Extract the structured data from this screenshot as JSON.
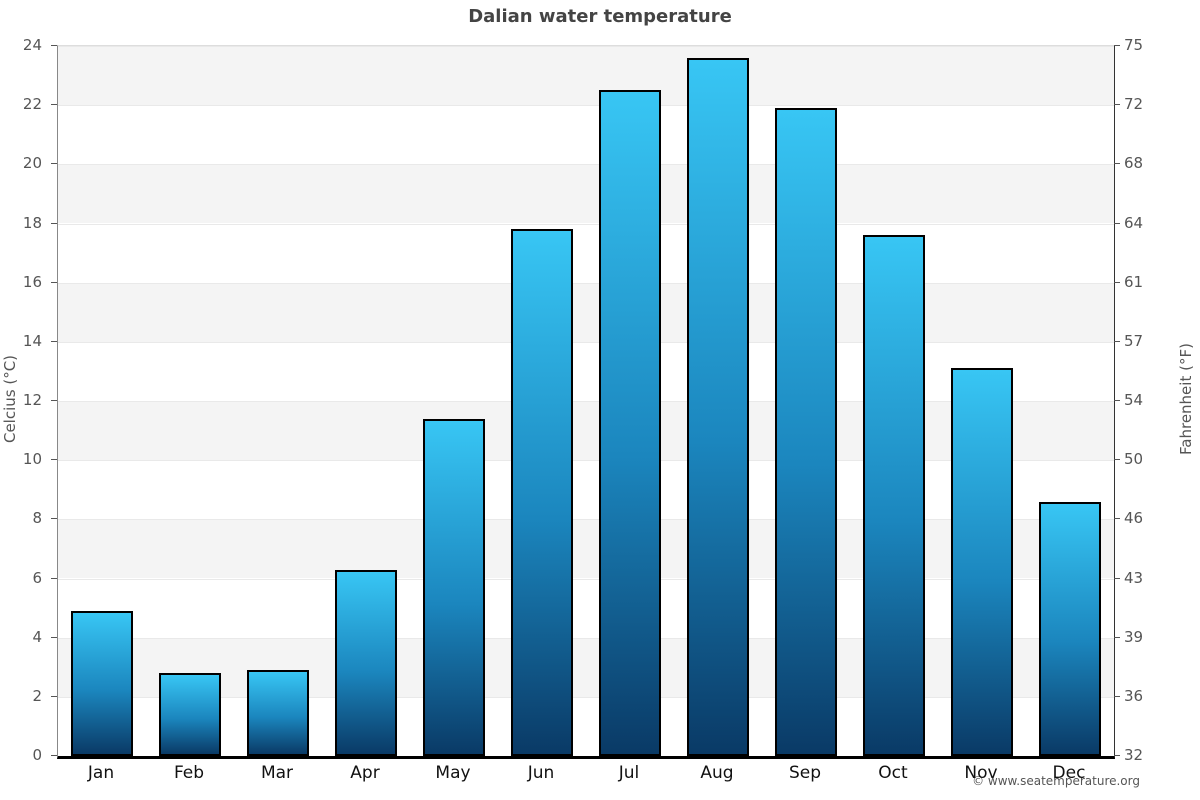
{
  "title": "Dalian water temperature",
  "footer": "© www.seatemperature.org",
  "chart_data": {
    "type": "bar",
    "title": "Dalian water temperature",
    "categories": [
      "Jan",
      "Feb",
      "Mar",
      "Apr",
      "May",
      "Jun",
      "Jul",
      "Aug",
      "Sep",
      "Oct",
      "Nov",
      "Dec"
    ],
    "values": [
      4.9,
      2.8,
      2.9,
      6.3,
      11.4,
      17.8,
      22.5,
      23.6,
      21.9,
      17.6,
      13.1,
      8.6
    ],
    "xlabel": "",
    "ylabel_left": "Celcius (°C)",
    "ylabel_right": "Fahrenheit (°F)",
    "ylim_left": [
      0,
      24
    ],
    "ylim_right_labels": [
      32,
      75
    ],
    "yticks_left": [
      0,
      2,
      4,
      6,
      8,
      10,
      12,
      14,
      16,
      18,
      20,
      22,
      24
    ],
    "yticks_right_labels": [
      "32",
      "36",
      "39",
      "43",
      "46",
      "50",
      "54",
      "57",
      "61",
      "64",
      "68",
      "72",
      "75"
    ],
    "grid": "alternating-horizontal-bands-every-2C",
    "legend": "none",
    "colors": {
      "bar_top": "#38c6f4",
      "bar_mid": "#1b86be",
      "bar_bottom": "#0a3a66",
      "bar_border": "#000000",
      "band_gray": "#f4f4f4",
      "band_white": "#ffffff",
      "band_edge": "#e9e9e9",
      "axis_bottom": "#000000",
      "tick_label": "#555555",
      "month_label": "#111111",
      "title": "#444444",
      "footer": "#555555"
    }
  }
}
